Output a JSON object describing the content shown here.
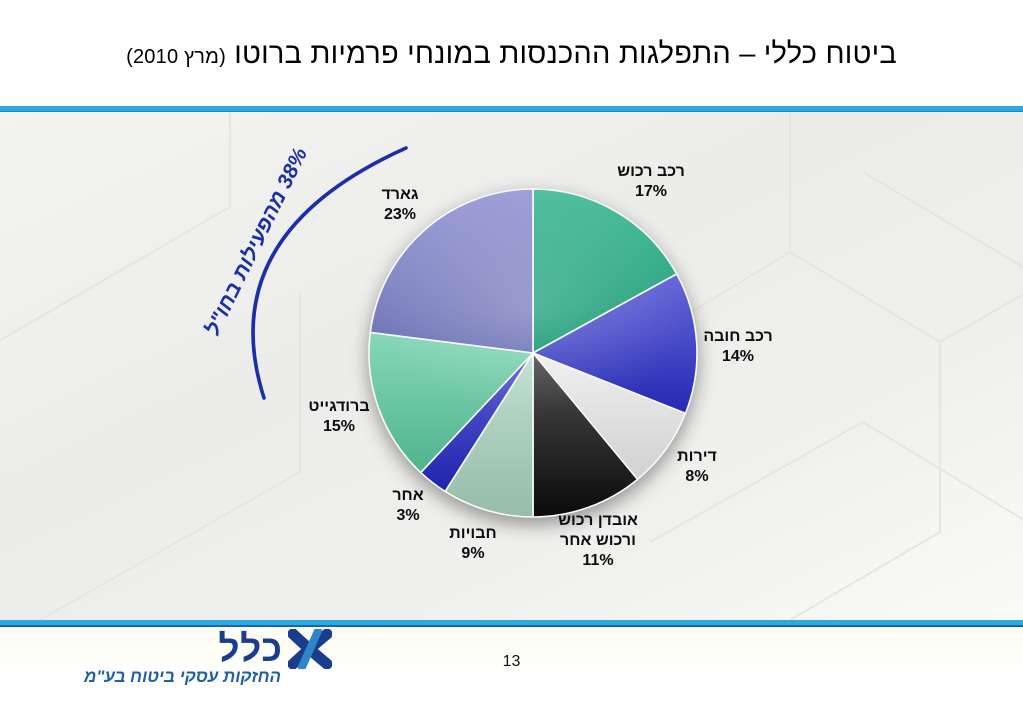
{
  "slide": {
    "title_main": "ביטוח כללי – התפלגות ההכנסות במונחי פרמיות ברוטו",
    "title_paren": "(מרץ 2010)",
    "page_number": "13"
  },
  "footer": {
    "logo_word": "כלל",
    "logo_tagline": "החזקות עסקי ביטוח בע\"מ"
  },
  "annotation": {
    "text": "38% מהפעילות בחו\"ל",
    "color": "#1B2FA8"
  },
  "colors": {
    "accent_line": "#2BA9E1",
    "logo_navy": "#1C3C8C",
    "logo_blue": "#2E86C8",
    "label_text": "#0D0D0D"
  },
  "chart_data": {
    "type": "pie",
    "title": "ביטוח כללי – התפלגות ההכנסות במונחי פרמיות ברוטו (מרץ 2010)",
    "start_angle_deg": 0,
    "direction": "clockwise",
    "legend_position": "around-slices",
    "annotation": "38% מהפעילות בחו\"ל",
    "slices": [
      {
        "label": "רכב רכוש",
        "label_lines": [
          "רכב רכוש"
        ],
        "value": 17,
        "pct": "17%",
        "color": "#12A87C"
      },
      {
        "label": "רכב חובה",
        "label_lines": [
          "רכב חובה"
        ],
        "value": 14,
        "pct": "14%",
        "color": "#2A2EC9"
      },
      {
        "label": "דירות",
        "label_lines": [
          "דירות"
        ],
        "value": 8,
        "pct": "8%",
        "color": "#E9E9E9"
      },
      {
        "label": "אובדן רכוש ורכוש אחר",
        "label_lines": [
          "אובדן רכוש",
          "ורכוש אחר"
        ],
        "value": 11,
        "pct": "11%",
        "color": "#0D0D0D"
      },
      {
        "label": "חבויות",
        "label_lines": [
          "חבויות"
        ],
        "value": 9,
        "pct": "9%",
        "color": "#A6D3BB"
      },
      {
        "label": "אחר",
        "label_lines": [
          "אחר"
        ],
        "value": 3,
        "pct": "3%",
        "color": "#2227C2"
      },
      {
        "label": "ברודגייט",
        "label_lines": [
          "ברודגייט"
        ],
        "value": 15,
        "pct": "15%",
        "color": "#58C89D"
      },
      {
        "label": "גארד",
        "label_lines": [
          "גארד"
        ],
        "value": 23,
        "pct": "23%",
        "color": "#7A7FC9"
      }
    ]
  }
}
